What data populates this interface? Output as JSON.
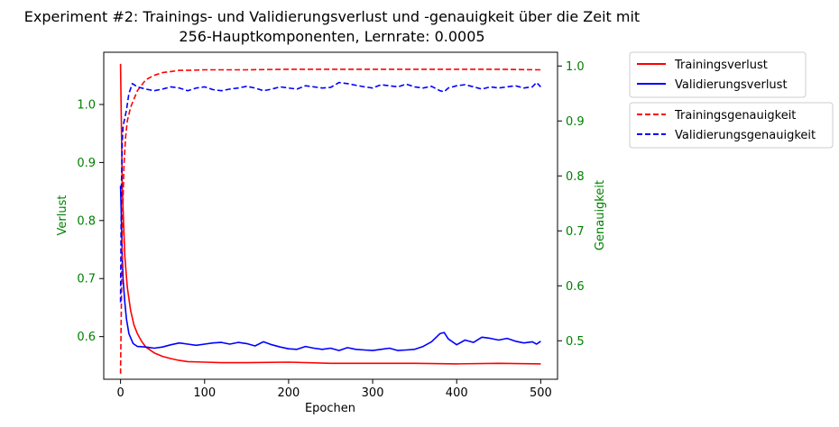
{
  "chart_data": {
    "type": "line",
    "title_line1": "Experiment #2: Trainings- und Validierungsverlust und -genauigkeit über die Zeit mit",
    "title_line2": "256-Hauptkomponenten, Lernrate: 0.0005",
    "xlabel": "Epochen",
    "ylabel_left": "Verlust",
    "ylabel_right": "Genauigkeit",
    "xlim": [
      -20,
      520
    ],
    "ylim_left": [
      0.5265,
      1.09
    ],
    "ylim_right": [
      0.43,
      1.025
    ],
    "xticks": [
      0,
      100,
      200,
      300,
      400,
      500
    ],
    "yticks_left": [
      0.6,
      0.7,
      0.8,
      0.9,
      1.0
    ],
    "yticks_right": [
      0.5,
      0.6,
      0.7,
      0.8,
      0.9,
      1.0
    ],
    "ytick_labels_left": [
      "0.6",
      "0.7",
      "0.8",
      "0.9",
      "1.0"
    ],
    "ytick_labels_right": [
      "0.5",
      "0.6",
      "0.7",
      "0.8",
      "0.9",
      "1.0"
    ],
    "axis_label_color": "#008000",
    "grid": false,
    "legend_loss_placement": "outside-top-right",
    "legend_acc_placement": "outside-right-below",
    "series": [
      {
        "name": "Trainingsverlust",
        "axis": "left",
        "color": "#ff0000",
        "dash": "solid",
        "x": [
          0,
          2,
          5,
          8,
          12,
          16,
          20,
          25,
          30,
          40,
          50,
          60,
          70,
          80,
          100,
          120,
          150,
          200,
          250,
          300,
          350,
          400,
          450,
          500
        ],
        "y": [
          1.07,
          0.86,
          0.74,
          0.685,
          0.645,
          0.62,
          0.605,
          0.592,
          0.582,
          0.572,
          0.566,
          0.562,
          0.559,
          0.557,
          0.556,
          0.555,
          0.555,
          0.556,
          0.554,
          0.554,
          0.554,
          0.553,
          0.554,
          0.553
        ]
      },
      {
        "name": "Validierungsverlust",
        "axis": "left",
        "color": "#0000ff",
        "dash": "solid",
        "x": [
          0,
          1,
          2,
          3,
          5,
          7,
          10,
          15,
          20,
          30,
          40,
          50,
          60,
          70,
          80,
          90,
          100,
          110,
          120,
          130,
          140,
          150,
          160,
          170,
          180,
          190,
          200,
          210,
          220,
          230,
          240,
          250,
          260,
          270,
          280,
          290,
          300,
          310,
          320,
          330,
          340,
          350,
          360,
          370,
          380,
          385,
          390,
          400,
          410,
          420,
          430,
          440,
          450,
          460,
          470,
          480,
          490,
          495,
          500
        ],
        "y": [
          0.86,
          0.8,
          0.74,
          0.7,
          0.66,
          0.63,
          0.605,
          0.588,
          0.583,
          0.582,
          0.58,
          0.582,
          0.586,
          0.589,
          0.587,
          0.585,
          0.587,
          0.589,
          0.59,
          0.587,
          0.59,
          0.588,
          0.584,
          0.591,
          0.586,
          0.582,
          0.579,
          0.578,
          0.583,
          0.58,
          0.578,
          0.58,
          0.576,
          0.581,
          0.578,
          0.577,
          0.576,
          0.578,
          0.58,
          0.576,
          0.577,
          0.578,
          0.583,
          0.591,
          0.605,
          0.607,
          0.596,
          0.586,
          0.594,
          0.59,
          0.599,
          0.597,
          0.594,
          0.597,
          0.592,
          0.589,
          0.591,
          0.587,
          0.592
        ]
      },
      {
        "name": "Trainingsgenauigkeit",
        "axis": "right",
        "color": "#ff0000",
        "dash": "dashed",
        "x": [
          0,
          2,
          4,
          6,
          8,
          12,
          16,
          20,
          25,
          30,
          40,
          50,
          60,
          70,
          80,
          100,
          150,
          200,
          250,
          300,
          350,
          400,
          450,
          500
        ],
        "y": [
          0.44,
          0.7,
          0.82,
          0.87,
          0.9,
          0.925,
          0.94,
          0.955,
          0.965,
          0.975,
          0.983,
          0.988,
          0.99,
          0.992,
          0.992,
          0.993,
          0.993,
          0.994,
          0.994,
          0.994,
          0.994,
          0.994,
          0.994,
          0.993
        ]
      },
      {
        "name": "Validierungsgenauigkeit",
        "axis": "right",
        "color": "#0000ff",
        "dash": "dashed",
        "x": [
          0,
          1,
          2,
          3,
          5,
          7,
          10,
          14,
          20,
          30,
          40,
          50,
          60,
          70,
          80,
          90,
          100,
          110,
          120,
          130,
          140,
          150,
          160,
          170,
          180,
          190,
          200,
          210,
          220,
          230,
          240,
          250,
          260,
          270,
          280,
          290,
          300,
          310,
          320,
          330,
          340,
          350,
          360,
          370,
          380,
          385,
          390,
          400,
          410,
          420,
          430,
          440,
          450,
          460,
          470,
          480,
          490,
          495,
          500
        ],
        "y": [
          0.57,
          0.78,
          0.86,
          0.89,
          0.905,
          0.92,
          0.95,
          0.968,
          0.962,
          0.958,
          0.955,
          0.958,
          0.962,
          0.96,
          0.955,
          0.96,
          0.962,
          0.957,
          0.955,
          0.958,
          0.96,
          0.963,
          0.96,
          0.955,
          0.958,
          0.962,
          0.96,
          0.958,
          0.964,
          0.962,
          0.96,
          0.961,
          0.97,
          0.968,
          0.965,
          0.962,
          0.96,
          0.966,
          0.964,
          0.962,
          0.967,
          0.962,
          0.96,
          0.963,
          0.955,
          0.953,
          0.96,
          0.964,
          0.966,
          0.962,
          0.958,
          0.962,
          0.96,
          0.962,
          0.964,
          0.96,
          0.962,
          0.97,
          0.962
        ]
      }
    ]
  }
}
